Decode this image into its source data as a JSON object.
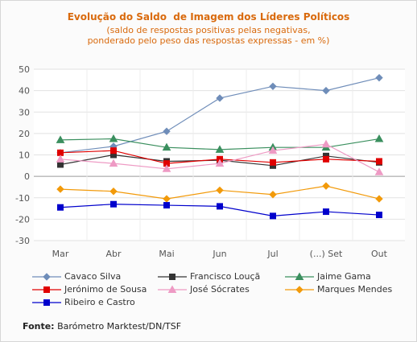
{
  "chart_data": {
    "type": "line",
    "title": "Evolução do Saldo  de Imagem dos Líderes Políticos",
    "subtitle_lines": [
      "(saldo de respostas positivas pelas negativas,",
      "ponderado pelo peso das respostas expressas - em %)"
    ],
    "categories": [
      "Mar",
      "Abr",
      "Mai",
      "Jun",
      "Jul",
      "(...) Set",
      "Out"
    ],
    "ylim": [
      -30,
      50
    ],
    "yticks": [
      50,
      40,
      30,
      20,
      10,
      0,
      -10,
      -20,
      -30
    ],
    "grid": true,
    "legend_position": "bottom",
    "series": [
      {
        "name": "Cavaco Silva",
        "color": "#6f8db9",
        "marker": "diamond",
        "values": [
          11,
          14,
          21,
          36.5,
          42,
          40,
          46
        ]
      },
      {
        "name": "Francisco Louçã",
        "color": "#333333",
        "marker": "square",
        "values": [
          5.5,
          10,
          7,
          7.5,
          5,
          9.5,
          6.5
        ]
      },
      {
        "name": "Jaime Gama",
        "color": "#3a8f5e",
        "marker": "triangle",
        "values": [
          17,
          17.5,
          13.5,
          12.5,
          13.5,
          13.5,
          17.5
        ]
      },
      {
        "name": "Jerónimo de Sousa",
        "color": "#e00000",
        "marker": "square",
        "values": [
          11,
          12,
          6,
          8,
          6.5,
          8,
          7
        ]
      },
      {
        "name": "José Sócrates",
        "color": "#ee9ac4",
        "marker": "triangle",
        "values": [
          8,
          6,
          3.5,
          6,
          12,
          15,
          2
        ]
      },
      {
        "name": "Marques Mendes",
        "color": "#f29a0a",
        "marker": "diamond",
        "values": [
          -6,
          -7,
          -10.5,
          -6.5,
          -8.5,
          -4.5,
          -10.5
        ]
      },
      {
        "name": "Ribeiro e Castro",
        "color": "#0000cc",
        "marker": "square",
        "values": [
          -14.5,
          -13,
          -13.5,
          -14,
          -18.5,
          -16.5,
          -18
        ]
      }
    ]
  },
  "source": {
    "lead": "Fonte:",
    "text": " Barómetro Marktest/DN/TSF"
  }
}
